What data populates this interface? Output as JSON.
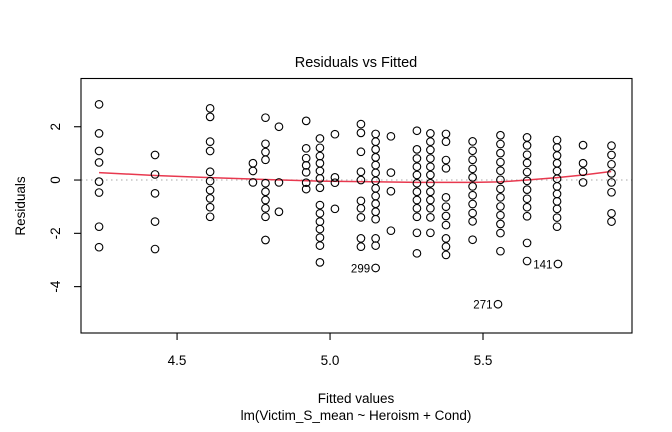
{
  "chart_data": {
    "type": "scatter",
    "title": "Residuals vs Fitted",
    "xlabel": "Fitted values",
    "sub_xlabel": "lm(Victim_S_mean ~ Heroism + Cond)",
    "ylabel": "Residuals",
    "xlim": [
      4.186,
      5.987
    ],
    "ylim": [
      -5.74,
      3.81
    ],
    "x_tick_values": [
      4.5,
      5.0,
      5.5
    ],
    "x_tick_labels": [
      "4.5",
      "5.0",
      "5.5"
    ],
    "y_tick_values": [
      2,
      0,
      -2,
      -4
    ],
    "y_tick_labels": [
      "2",
      "0",
      "-2",
      "-4"
    ],
    "grid": "off",
    "legend": "none",
    "zero_reference_line": 0,
    "point_style": "open-circle",
    "colors": {
      "points": "#000000",
      "smooth_line": "#e8394f",
      "zero_line": "#b9b9b9",
      "axis": "#000000"
    },
    "smooth": [
      [
        4.245,
        0.28
      ],
      [
        4.428,
        0.17
      ],
      [
        4.608,
        0.09
      ],
      [
        4.788,
        0.02
      ],
      [
        4.967,
        -0.04
      ],
      [
        5.101,
        -0.06
      ],
      [
        5.284,
        -0.09
      ],
      [
        5.464,
        -0.09
      ],
      [
        5.556,
        -0.07
      ],
      [
        5.644,
        0.0
      ],
      [
        5.742,
        0.09
      ],
      [
        5.827,
        0.19
      ],
      [
        5.919,
        0.32
      ]
    ],
    "columns": [
      {
        "x": 4.245,
        "residuals": [
          2.84,
          1.75,
          1.09,
          0.66,
          -0.06,
          -0.47,
          -1.75,
          -2.52
        ]
      },
      {
        "x": 4.428,
        "residuals": [
          0.94,
          0.21,
          -0.5,
          -1.56,
          -2.59
        ]
      },
      {
        "x": 4.608,
        "residuals": [
          2.69,
          2.37,
          1.44,
          1.09,
          0.31,
          -0.04,
          -0.38,
          -0.69,
          -1.02,
          -1.38
        ]
      },
      {
        "x": 4.748,
        "residuals": [
          0.63,
          0.34,
          -0.09
        ]
      },
      {
        "x": 4.789,
        "residuals": [
          2.34,
          1.36,
          1.05,
          0.76,
          -0.12,
          -0.44,
          -0.75,
          -1.06,
          -1.38,
          -2.25
        ]
      },
      {
        "x": 4.833,
        "residuals": [
          2.0,
          -0.09,
          -1.19
        ]
      },
      {
        "x": 4.922,
        "residuals": [
          2.22,
          1.19,
          0.82,
          0.55,
          0.29,
          -0.1,
          -0.34
        ]
      },
      {
        "x": 4.967,
        "residuals": [
          1.56,
          1.21,
          0.9,
          0.63,
          0.34,
          0.06,
          -0.29,
          -0.94,
          -1.25,
          -1.56,
          -1.84,
          -2.16,
          -2.46,
          -3.09
        ]
      },
      {
        "x": 5.016,
        "residuals": [
          1.72,
          0.1,
          -0.1,
          -1.08
        ]
      },
      {
        "x": 5.101,
        "residuals": [
          2.1,
          1.77,
          1.06,
          0.31,
          0.0,
          -0.78,
          -1.06,
          -1.4,
          -2.19,
          -2.5
        ]
      },
      {
        "x": 5.149,
        "residuals": [
          1.73,
          1.44,
          1.15,
          0.85,
          0.56,
          0.27,
          -0.03,
          -0.31,
          -0.6,
          -0.89,
          -1.19,
          -1.47,
          -2.19,
          -2.46
        ]
      },
      {
        "x": 5.199,
        "residuals": [
          1.64,
          0.28,
          -0.42,
          -1.9
        ]
      },
      {
        "x": 5.284,
        "residuals": [
          1.85,
          1.15,
          0.81,
          0.5,
          0.19,
          -0.12,
          -0.44,
          -0.75,
          -1.06,
          -1.38,
          -1.98,
          -2.75
        ]
      },
      {
        "x": 5.328,
        "residuals": [
          1.75,
          1.44,
          1.13,
          0.81,
          0.5,
          0.19,
          -0.12,
          -0.44,
          -0.75,
          -1.06,
          -1.4,
          -1.98
        ]
      },
      {
        "x": 5.379,
        "residuals": [
          1.73,
          1.44,
          0.75,
          0.44,
          -0.65,
          -1.0,
          -1.35,
          -1.69,
          -2.19,
          -2.5,
          -2.81
        ]
      },
      {
        "x": 5.466,
        "residuals": [
          1.45,
          1.1,
          0.76,
          0.42,
          0.1,
          -0.24,
          -0.57,
          -0.9,
          -1.24,
          -1.55,
          -2.24
        ]
      },
      {
        "x": 5.557,
        "residuals": [
          1.68,
          1.35,
          1.01,
          0.67,
          0.35,
          0.01,
          -0.33,
          -0.65,
          -0.99,
          -1.32,
          -1.65,
          -1.99,
          -2.67
        ]
      },
      {
        "x": 5.644,
        "residuals": [
          1.6,
          1.3,
          0.95,
          0.64,
          0.3,
          -0.03,
          -0.36,
          -0.7,
          -1.02,
          -1.36,
          -2.36,
          -3.04
        ]
      },
      {
        "x": 5.742,
        "residuals": [
          1.5,
          1.22,
          0.92,
          0.63,
          0.34,
          0.05,
          -0.24,
          -0.52,
          -0.8,
          -1.08,
          -1.41,
          -1.75
        ]
      },
      {
        "x": 5.827,
        "residuals": [
          1.31,
          0.63,
          0.31,
          -0.09
        ]
      },
      {
        "x": 5.92,
        "residuals": [
          1.29,
          0.94,
          0.59,
          0.25,
          -0.09,
          -0.46,
          -1.25,
          -1.56
        ]
      }
    ],
    "labeled_points": [
      {
        "label": "299",
        "x": 5.149,
        "y": -3.3
      },
      {
        "label": "271",
        "x": 5.549,
        "y": -4.66
      },
      {
        "label": "141",
        "x": 5.745,
        "y": -3.15
      }
    ]
  }
}
